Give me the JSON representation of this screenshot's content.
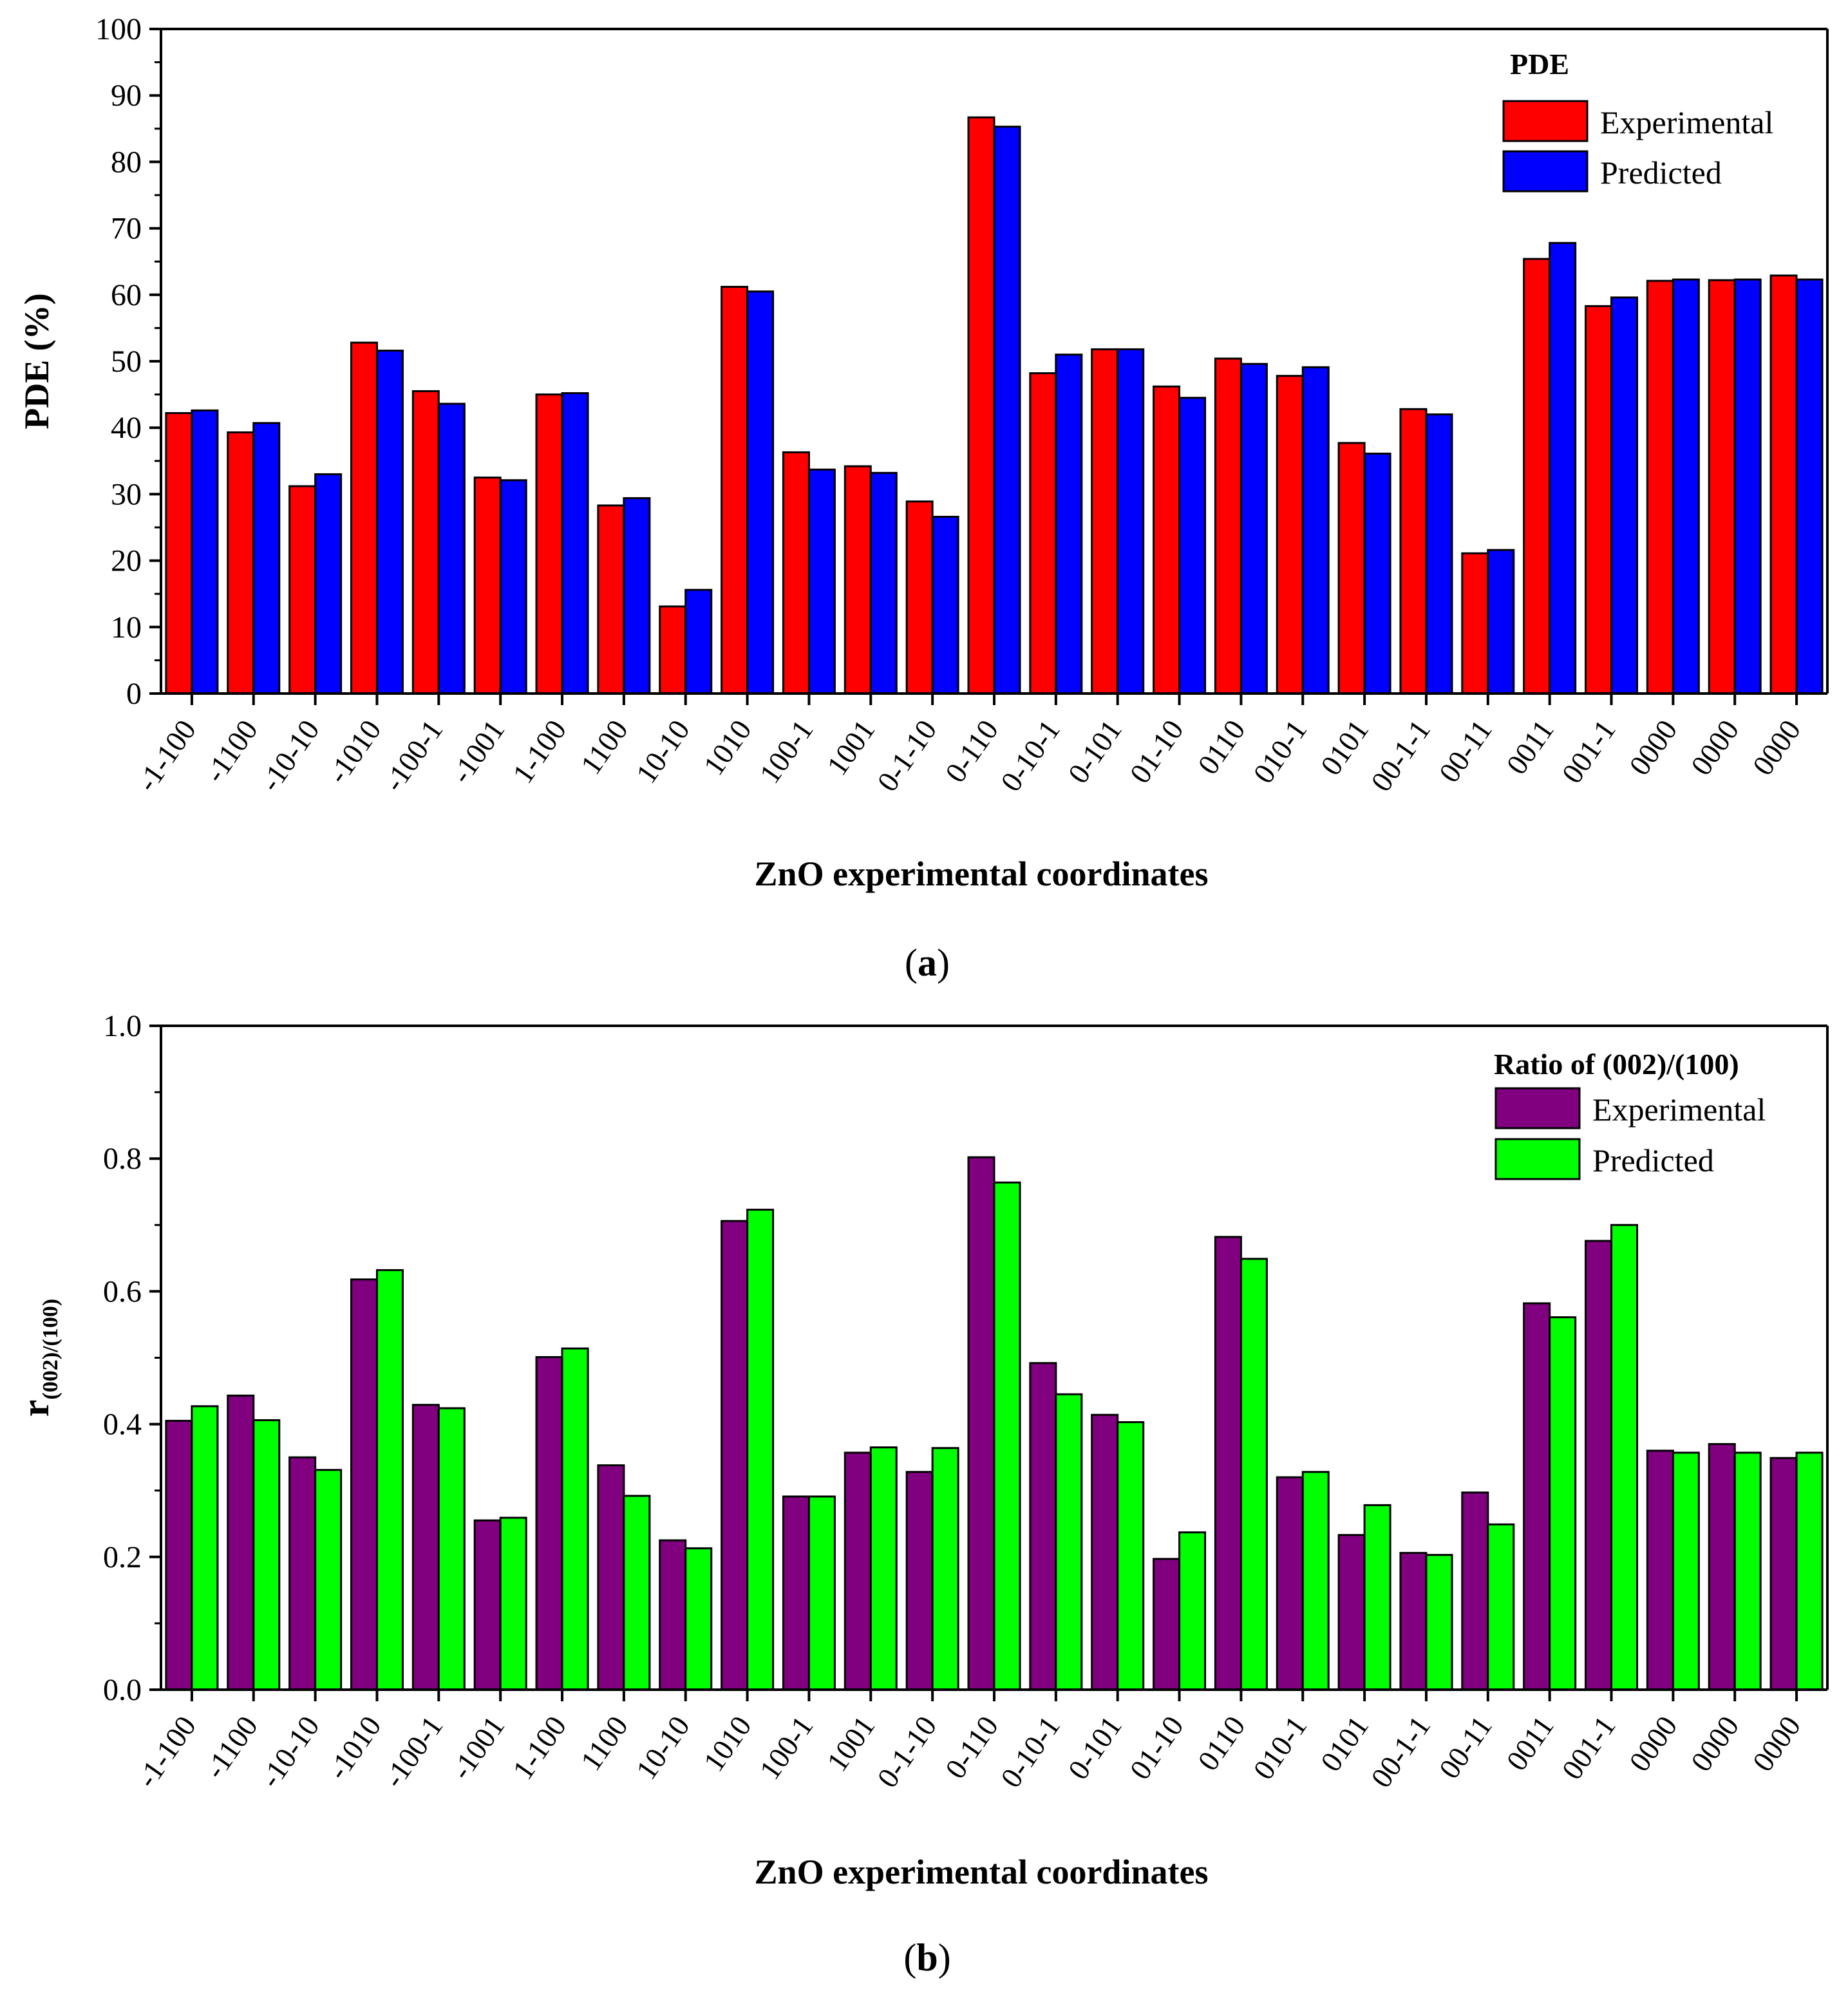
{
  "figure": {
    "captions": [
      {
        "open": "(",
        "letter": "a",
        "close": ")"
      },
      {
        "open": "(",
        "letter": "b",
        "close": ")"
      }
    ]
  },
  "chart_data": [
    {
      "type": "bar",
      "panel": "a",
      "title": "",
      "xlabel": "ZnO experimental coordinates",
      "ylabel": "PDE (%)",
      "ylim": [
        0,
        100
      ],
      "yticks": [
        0,
        10,
        20,
        30,
        40,
        50,
        60,
        70,
        80,
        90,
        100
      ],
      "grid": false,
      "legend": {
        "title": "PDE",
        "position": "top-right"
      },
      "categories": [
        "-1-100",
        "-1100",
        "-10-10",
        "-1010",
        "-100-1",
        "-1001",
        "1-100",
        "1100",
        "10-10",
        "1010",
        "100-1",
        "1001",
        "0-1-10",
        "0-110",
        "0-10-1",
        "0-101",
        "01-10",
        "0110",
        "010-1",
        "0101",
        "00-1-1",
        "00-11",
        "0011",
        "001-1",
        "0000",
        "0000",
        "0000"
      ],
      "series": [
        {
          "name": "Experimental",
          "color": "#ff0000",
          "values": [
            42.2,
            39.3,
            31.2,
            52.8,
            45.5,
            32.5,
            45.0,
            28.3,
            13.1,
            61.2,
            36.3,
            34.2,
            28.9,
            86.7,
            48.2,
            51.8,
            46.2,
            50.4,
            47.8,
            37.7,
            42.8,
            21.1,
            65.4,
            58.3,
            62.1,
            62.2,
            62.9
          ]
        },
        {
          "name": "Predicted",
          "color": "#0000ff",
          "values": [
            42.6,
            40.7,
            33.0,
            51.6,
            43.6,
            32.1,
            45.2,
            29.4,
            15.6,
            60.5,
            33.7,
            33.2,
            26.6,
            85.3,
            51.0,
            51.8,
            44.5,
            49.6,
            49.1,
            36.1,
            42.0,
            21.6,
            67.8,
            59.6,
            62.3,
            62.3,
            62.3
          ]
        }
      ]
    },
    {
      "type": "bar",
      "panel": "b",
      "title": "",
      "xlabel": "ZnO experimental coordinates",
      "ylabel": {
        "main": "r",
        "subscript": "(002)/(100)"
      },
      "ylim": [
        0.0,
        1.0
      ],
      "yticks": [
        "0.0",
        "0.2",
        "0.4",
        "0.6",
        "0.8",
        "1.0"
      ],
      "grid": false,
      "legend": {
        "title": "Ratio of (002)/(100)",
        "position": "top-right"
      },
      "categories": [
        "-1-100",
        "-1100",
        "-10-10",
        "-1010",
        "-100-1",
        "-1001",
        "1-100",
        "1100",
        "10-10",
        "1010",
        "100-1",
        "1001",
        "0-1-10",
        "0-110",
        "0-10-1",
        "0-101",
        "01-10",
        "0110",
        "010-1",
        "0101",
        "00-1-1",
        "00-11",
        "0011",
        "001-1",
        "0000",
        "0000",
        "0000"
      ],
      "series": [
        {
          "name": "Experimental",
          "color": "#800080",
          "values": [
            0.405,
            0.443,
            0.35,
            0.618,
            0.429,
            0.255,
            0.501,
            0.338,
            0.225,
            0.706,
            0.291,
            0.357,
            0.328,
            0.802,
            0.492,
            0.414,
            0.197,
            0.682,
            0.32,
            0.233,
            0.206,
            0.297,
            0.582,
            0.676,
            0.36,
            0.37,
            0.349
          ]
        },
        {
          "name": "Predicted",
          "color": "#00ff00",
          "values": [
            0.427,
            0.406,
            0.331,
            0.632,
            0.424,
            0.259,
            0.514,
            0.292,
            0.213,
            0.723,
            0.291,
            0.365,
            0.364,
            0.764,
            0.445,
            0.403,
            0.237,
            0.649,
            0.328,
            0.278,
            0.203,
            0.249,
            0.561,
            0.7,
            0.357,
            0.357,
            0.357
          ]
        }
      ]
    }
  ]
}
